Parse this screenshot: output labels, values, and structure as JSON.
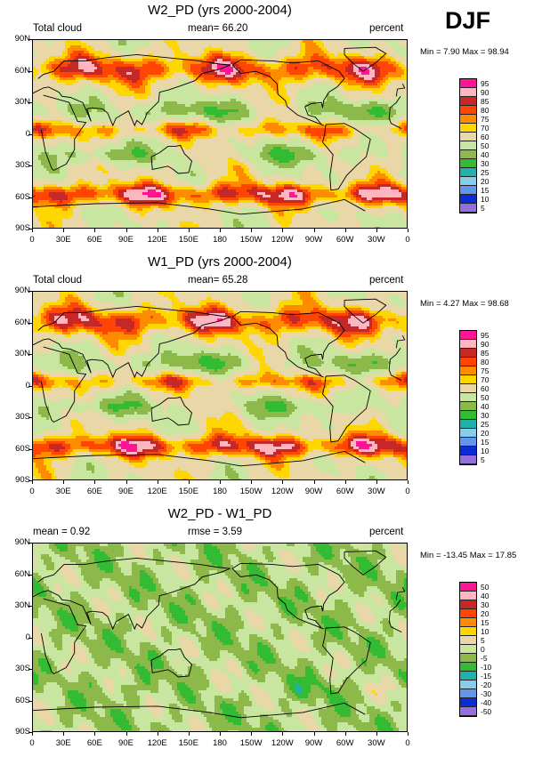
{
  "season": "DJF",
  "panels": [
    {
      "title": "W2_PD (yrs 2000-2004)",
      "left_label": "Total cloud",
      "mean_label": "mean=  66.20",
      "rmse_label": "",
      "units": "percent",
      "minmax": "Min =  7.90 Max = 98.94",
      "levels": [
        "95",
        "90",
        "85",
        "80",
        "75",
        "70",
        "60",
        "50",
        "40",
        "30",
        "25",
        "20",
        "15",
        "10",
        "5"
      ],
      "colors": [
        "#ff1493",
        "#ffb6c1",
        "#c62828",
        "#ff4500",
        "#ff8c00",
        "#ffd700",
        "#ead7a8",
        "#c9e6a0",
        "#8db94a",
        "#33bb33",
        "#20b2aa",
        "#87ceeb",
        "#6495ed",
        "#0a2bd6",
        "#9370db"
      ],
      "scheme": "abs"
    },
    {
      "title": "W1_PD (yrs 2000-2004)",
      "left_label": "Total cloud",
      "mean_label": "mean=  65.28",
      "rmse_label": "",
      "units": "percent",
      "minmax": "Min =  4.27 Max = 98.68",
      "levels": [
        "95",
        "90",
        "85",
        "80",
        "75",
        "70",
        "60",
        "50",
        "40",
        "30",
        "25",
        "20",
        "15",
        "10",
        "5"
      ],
      "colors": [
        "#ff1493",
        "#ffb6c1",
        "#c62828",
        "#ff4500",
        "#ff8c00",
        "#ffd700",
        "#ead7a8",
        "#c9e6a0",
        "#8db94a",
        "#33bb33",
        "#20b2aa",
        "#87ceeb",
        "#6495ed",
        "#0a2bd6",
        "#9370db"
      ],
      "scheme": "abs"
    },
    {
      "title": "W2_PD - W1_PD",
      "left_label": "mean =  0.92",
      "mean_label": "",
      "rmse_label": "rmse =  3.59",
      "units": "percent",
      "minmax": "Min = -13.45 Max = 17.85",
      "levels": [
        "50",
        "40",
        "30",
        "20",
        "15",
        "10",
        "5",
        "0",
        "-5",
        "-10",
        "-15",
        "-20",
        "-30",
        "-40",
        "-50"
      ],
      "colors": [
        "#ff1493",
        "#ffb6c1",
        "#c62828",
        "#ff4500",
        "#ff8c00",
        "#ffd700",
        "#ead7a8",
        "#c9e6a0",
        "#8db94a",
        "#33bb33",
        "#20b2aa",
        "#87ceeb",
        "#6495ed",
        "#0a2bd6",
        "#9370db"
      ],
      "scheme": "diff"
    }
  ],
  "lat_labels": [
    "90N",
    "60N",
    "30N",
    "0",
    "30S",
    "60S",
    "90S"
  ],
  "lon_labels": [
    "0",
    "30E",
    "60E",
    "90E",
    "120E",
    "150E",
    "180",
    "150W",
    "120W",
    "90W",
    "60W",
    "30W",
    "0"
  ]
}
